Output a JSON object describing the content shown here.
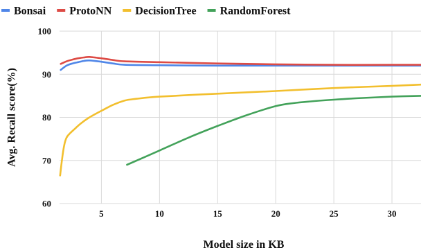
{
  "chart_data": {
    "type": "line",
    "title": "",
    "xlabel": "Model size in KB",
    "ylabel": "Avg. Recall score(%)",
    "xlim": [
      1.4,
      32.5
    ],
    "ylim": [
      60,
      100
    ],
    "xticks": [
      5,
      10,
      15,
      20,
      25,
      30
    ],
    "yticks": [
      60,
      70,
      80,
      90,
      100
    ],
    "grid": true,
    "legend": "top",
    "series": [
      {
        "name": "Bonsai",
        "color": "#4f86e8",
        "x": [
          1.5,
          2.0,
          2.5,
          3.0,
          3.5,
          4.0,
          5.0,
          6.0,
          7.0,
          10.0,
          15.0,
          20.0,
          25.0,
          30.0,
          32.5
        ],
        "y": [
          91.0,
          92.0,
          92.5,
          92.8,
          93.1,
          93.2,
          92.9,
          92.5,
          92.2,
          92.1,
          92.0,
          92.0,
          92.0,
          92.0,
          92.0
        ]
      },
      {
        "name": "ProtoNN",
        "color": "#dd4b45",
        "x": [
          1.5,
          2.0,
          2.5,
          3.0,
          3.5,
          4.0,
          5.0,
          6.0,
          7.0,
          10.0,
          15.0,
          20.0,
          25.0,
          30.0,
          32.5
        ],
        "y": [
          92.4,
          93.0,
          93.4,
          93.7,
          93.9,
          94.0,
          93.7,
          93.3,
          93.0,
          92.8,
          92.5,
          92.3,
          92.2,
          92.2,
          92.2
        ]
      },
      {
        "name": "DecisionTree",
        "color": "#f2bf2e",
        "x": [
          1.45,
          1.6,
          1.8,
          2.0,
          2.3,
          2.7,
          3.2,
          3.8,
          4.5,
          5.2,
          6.0,
          7.0,
          8.0,
          10.0,
          15.0,
          20.0,
          25.0,
          30.0,
          32.5
        ],
        "y": [
          66.5,
          70.0,
          73.5,
          75.3,
          76.3,
          77.3,
          78.5,
          79.7,
          80.8,
          81.8,
          82.9,
          83.9,
          84.3,
          84.8,
          85.5,
          86.1,
          86.8,
          87.3,
          87.6
        ]
      },
      {
        "name": "RandomForest",
        "color": "#43a25a",
        "x": [
          7.2,
          10.0,
          12.5,
          15.0,
          17.5,
          20.0,
          21.5,
          23.0,
          25.0,
          27.5,
          30.0,
          32.5
        ],
        "y": [
          69.0,
          72.3,
          75.3,
          78.0,
          80.5,
          82.6,
          83.3,
          83.7,
          84.1,
          84.5,
          84.8,
          85.0
        ]
      }
    ]
  }
}
